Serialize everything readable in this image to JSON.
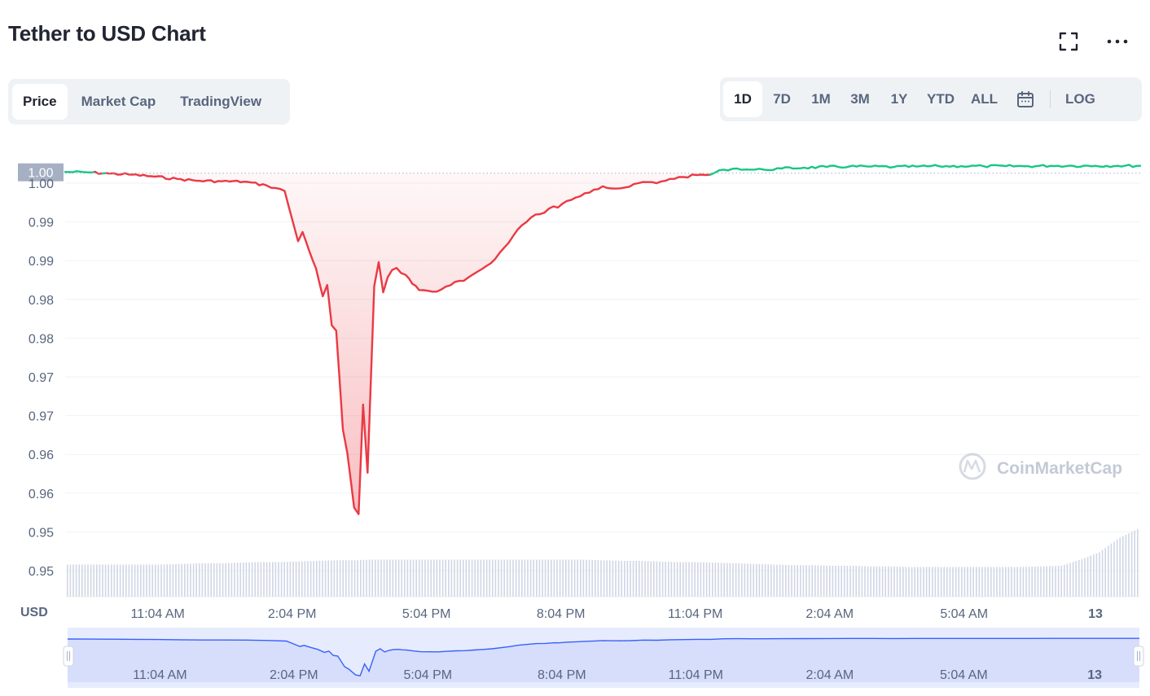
{
  "header": {
    "title": "Tether to USD Chart"
  },
  "view_tabs": [
    {
      "label": "Price",
      "active": true
    },
    {
      "label": "Market Cap",
      "active": false
    },
    {
      "label": "TradingView",
      "active": false
    }
  ],
  "range_tabs": [
    {
      "label": "1D",
      "active": true
    },
    {
      "label": "7D",
      "active": false
    },
    {
      "label": "1M",
      "active": false
    },
    {
      "label": "3M",
      "active": false
    },
    {
      "label": "1Y",
      "active": false
    },
    {
      "label": "YTD",
      "active": false
    },
    {
      "label": "ALL",
      "active": false
    }
  ],
  "log_label": "LOG",
  "icons": {
    "fullscreen": "fullscreen-icon",
    "more": "more-options-icon",
    "calendar": "calendar-icon",
    "watermark": "coinmarketcap-logo"
  },
  "watermark_text": "CoinMarketCap",
  "colors": {
    "up": "#16c784",
    "down": "#ea3943",
    "nav": "#3861fb",
    "volume": "#cfd6e4",
    "current_badge": "#a6b0c3"
  },
  "chart_data": {
    "type": "line",
    "title": "Tether to USD Chart",
    "ylabel": "USD",
    "y_tick_labels": [
      "1.00",
      "0.99",
      "0.99",
      "0.98",
      "0.98",
      "0.97",
      "0.97",
      "0.96",
      "0.96",
      "0.95",
      "0.95"
    ],
    "ylim": [
      0.9485,
      1.0015
    ],
    "x_tick_labels": [
      "11:04 AM",
      "2:04 PM",
      "5:04 PM",
      "8:04 PM",
      "11:04 PM",
      "2:04 AM",
      "5:04 AM",
      "13"
    ],
    "x_tick_hours": [
      11.0667,
      14.0667,
      17.0667,
      20.0667,
      23.0667,
      26.0667,
      29.0667,
      32.0
    ],
    "xlim": [
      9.0,
      33.0
    ],
    "reference_price": 0.99985,
    "current_price_label": "1.00",
    "grid": true,
    "series": [
      {
        "x_hours": [
          9.0,
          9.5,
          10.0,
          10.5,
          11.0,
          11.5,
          12.0,
          12.5,
          13.0,
          13.5,
          13.9,
          14.1,
          14.2,
          14.3,
          14.45,
          14.6,
          14.75,
          14.85,
          14.95,
          15.05,
          15.2,
          15.3,
          15.45,
          15.55,
          15.65,
          15.75,
          15.9,
          16.0,
          16.1,
          16.2,
          16.3,
          16.4,
          16.5,
          16.6,
          16.75,
          16.9,
          17.1,
          17.3,
          17.5,
          17.7,
          17.9,
          18.1,
          18.3,
          18.5,
          18.7,
          18.9,
          19.1,
          19.3,
          19.5,
          19.7,
          19.9,
          20.0,
          20.2,
          20.4,
          20.6,
          20.8,
          21.0,
          21.3,
          21.6,
          21.9,
          22.2,
          22.5,
          22.8,
          23.1,
          23.4,
          23.7,
          24.0,
          24.3,
          24.6,
          25.0,
          25.5,
          26.0,
          26.5,
          27.0,
          27.5,
          28.0,
          28.5,
          29.0,
          29.5,
          30.0,
          30.5,
          31.0,
          31.5,
          32.0,
          32.5,
          33.0
        ],
        "values": [
          1.0,
          0.99995,
          0.9998,
          0.99965,
          0.9994,
          0.9991,
          0.99885,
          0.9988,
          0.99875,
          0.99825,
          0.99755,
          0.9932,
          0.99105,
          0.99225,
          0.9898,
          0.98755,
          0.98395,
          0.9854,
          0.9802,
          0.9795,
          0.96675,
          0.96365,
          0.95665,
          0.9558,
          0.96995,
          0.96115,
          0.98525,
          0.98835,
          0.98445,
          0.9864,
          0.98735,
          0.9876,
          0.98695,
          0.9867,
          0.98555,
          0.98475,
          0.98465,
          0.98455,
          0.9852,
          0.9858,
          0.98595,
          0.98675,
          0.98745,
          0.9882,
          0.98955,
          0.99085,
          0.99255,
          0.99355,
          0.9945,
          0.99475,
          0.99555,
          0.9954,
          0.99625,
          0.9967,
          0.99725,
          0.9977,
          0.99815,
          0.99785,
          0.9981,
          0.9987,
          0.99855,
          0.9991,
          0.99935,
          0.9996,
          0.99965,
          1.0003,
          1.00045,
          1.0003,
          1.0003,
          1.00045,
          1.00055,
          1.00065,
          1.0007,
          1.0007,
          1.00065,
          1.0007,
          1.00075,
          1.00075,
          1.00075,
          1.00075,
          1.00075,
          1.0008,
          1.0008,
          1.0008,
          1.0008,
          1.0008
        ]
      }
    ],
    "volume_relative": [
      0.42,
      0.42,
      0.42,
      0.42,
      0.42,
      0.42,
      0.43,
      0.44,
      0.44,
      0.45,
      0.46,
      0.46,
      0.47,
      0.48,
      0.49,
      0.49,
      0.5,
      0.5,
      0.5,
      0.5,
      0.5,
      0.5,
      0.5,
      0.5,
      0.5,
      0.5,
      0.5,
      0.5,
      0.49,
      0.48,
      0.48,
      0.47,
      0.46,
      0.46,
      0.45,
      0.44,
      0.43,
      0.42,
      0.41,
      0.41,
      0.4,
      0.4,
      0.39,
      0.39,
      0.38,
      0.38,
      0.38,
      0.38,
      0.38,
      0.38,
      0.38,
      0.39,
      0.4,
      0.5,
      0.62,
      0.85,
      1.0
    ]
  },
  "navigator": {
    "x_tick_labels": [
      "11:04 AM",
      "2:04 PM",
      "5:04 PM",
      "8:04 PM",
      "11:04 PM",
      "2:04 AM",
      "5:04 AM",
      "13"
    ]
  }
}
